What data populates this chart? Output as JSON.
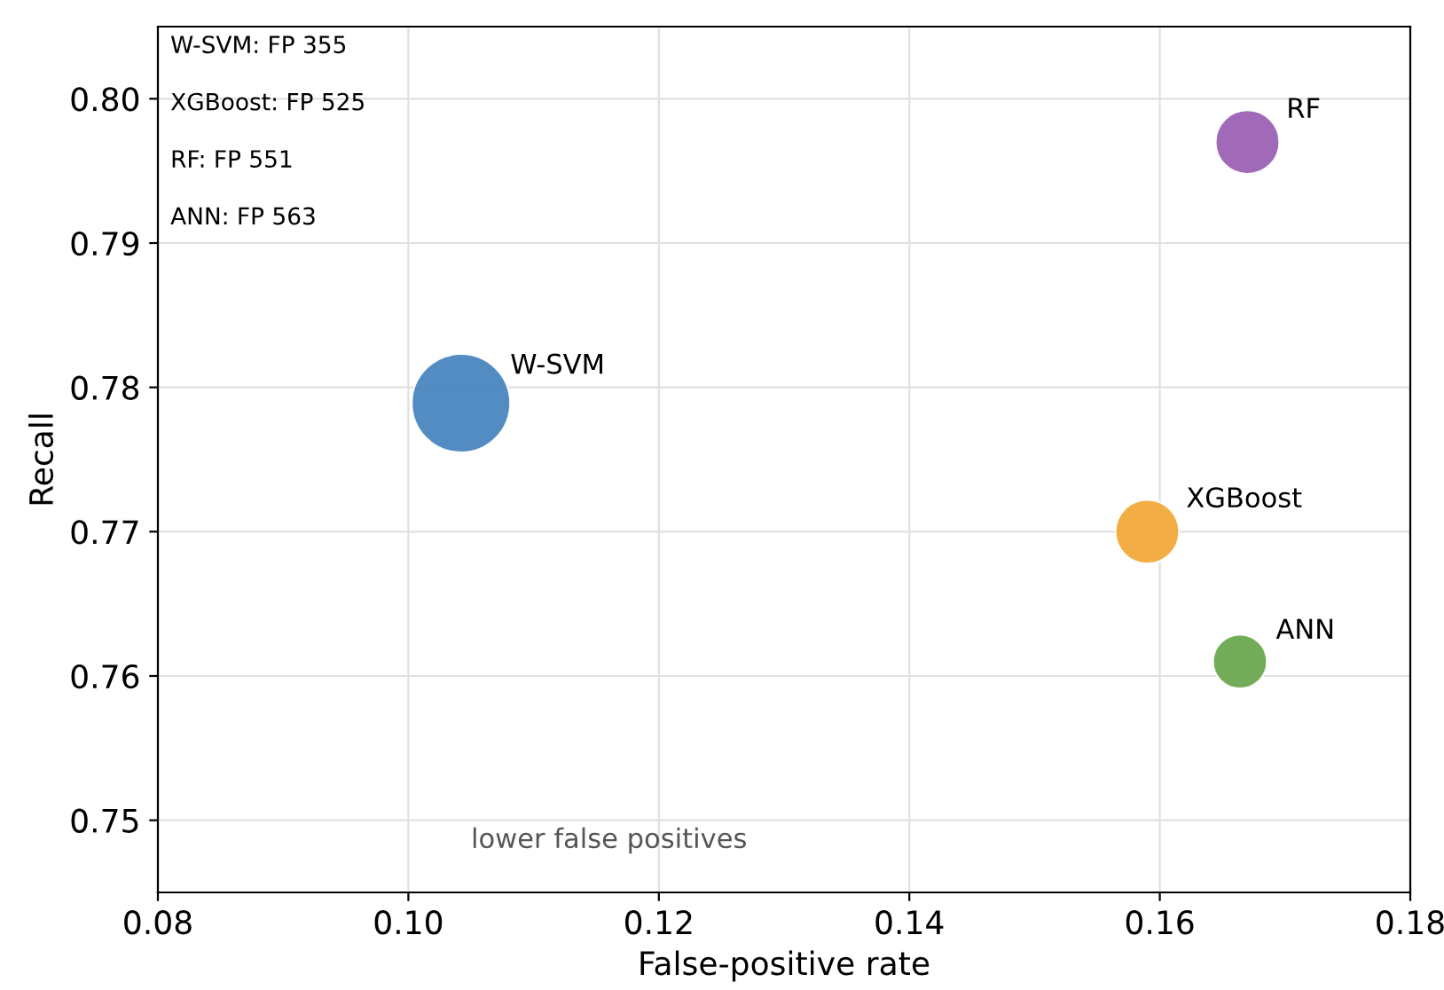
{
  "chart_data": {
    "type": "bubble",
    "xlabel": "False-positive rate",
    "ylabel": "Recall",
    "series": [
      {
        "name": "W-SVM",
        "color": "#4a86c0",
        "x": [
          0.1042
        ],
        "values": [
          0.7789
        ],
        "sizes": [
          1
        ]
      },
      {
        "name": "XGBoost",
        "color": "#f2a93b",
        "x": [
          0.159
        ],
        "values": [
          0.77
        ],
        "sizes": [
          0.42
        ]
      },
      {
        "name": "RF",
        "color": "#9b62b4",
        "x": [
          0.167
        ],
        "values": [
          0.797
        ],
        "sizes": [
          0.42
        ]
      },
      {
        "name": "ANN",
        "color": "#6aa84f",
        "x": [
          0.1664
        ],
        "values": [
          0.761
        ],
        "sizes": [
          0.3
        ]
      }
    ],
    "xlim": [
      0.08,
      0.18
    ],
    "xticks": [
      {
        "value": 0.08,
        "label": "0.08"
      },
      {
        "value": 0.1,
        "label": "0.10"
      },
      {
        "value": 0.12,
        "label": "0.12"
      },
      {
        "value": 0.14,
        "label": "0.14"
      },
      {
        "value": 0.16,
        "label": "0.16"
      },
      {
        "value": 0.18,
        "label": "0.18"
      }
    ],
    "ylim": [
      0.745,
      0.805
    ],
    "yticks": [
      {
        "value": 0.75,
        "label": "0.75"
      },
      {
        "value": 0.76,
        "label": "0.76"
      },
      {
        "value": 0.77,
        "label": "0.77"
      },
      {
        "value": 0.78,
        "label": "0.78"
      },
      {
        "value": 0.79,
        "label": "0.79"
      },
      {
        "value": 0.8,
        "label": "0.80"
      }
    ],
    "grid": true,
    "annotations": [
      "W-SVM: FP 355",
      "XGBoost: FP 525",
      "RF: FP 551",
      "ANN: FP 563",
      "lower false positives"
    ]
  }
}
